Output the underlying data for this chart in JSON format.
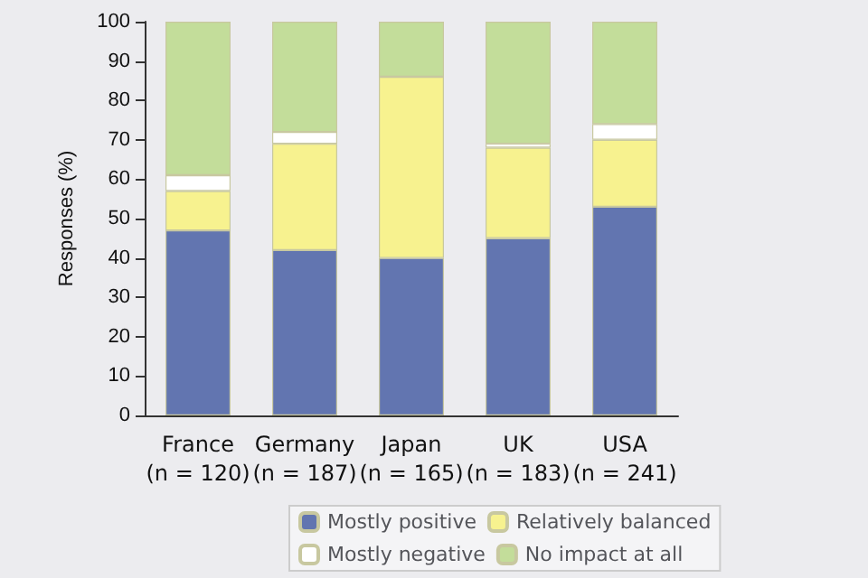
{
  "chart_data": {
    "type": "bar",
    "stacked": true,
    "ylabel": "Responses (%)",
    "categories": [
      "France\n(n = 120)",
      "Germany\n(n = 187)",
      "Japan\n(n = 165)",
      "UK\n(n = 183)",
      "USA\n(n = 241)"
    ],
    "series": [
      {
        "name": "Mostly positive",
        "color": "#6275b0",
        "values": [
          47,
          42,
          40,
          45,
          53
        ]
      },
      {
        "name": "Relatively balanced",
        "color": "#f7f28f",
        "values": [
          10,
          27,
          46,
          23,
          17
        ]
      },
      {
        "name": "Mostly negative",
        "color": "#ffffff",
        "values": [
          4,
          3,
          0,
          1,
          4
        ]
      },
      {
        "name": "No impact at all",
        "color": "#c3dd9a",
        "values": [
          39,
          28,
          14,
          31,
          26
        ]
      }
    ],
    "ylim": [
      0,
      100
    ],
    "yticks": [
      0,
      10,
      20,
      30,
      40,
      50,
      60,
      70,
      80,
      90,
      100
    ],
    "grid": false,
    "legend": "bottom"
  }
}
